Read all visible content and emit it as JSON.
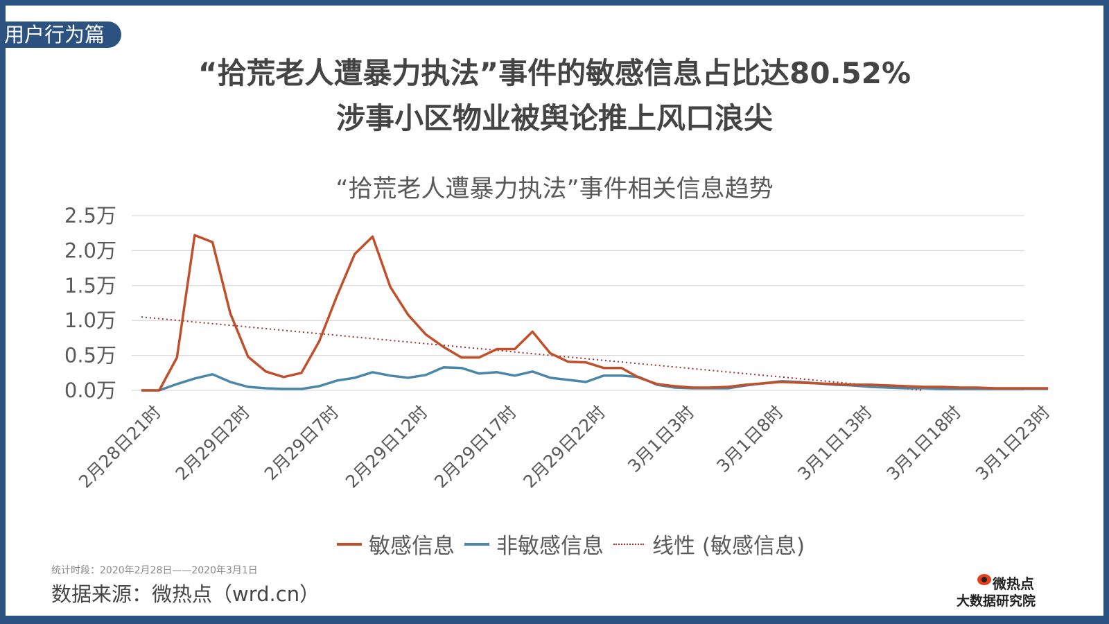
{
  "section_tag": "用户行为篇",
  "headline": {
    "line1": "“拾荒老人遭暴力执法”事件的敏感信息占比达80.52%",
    "line2": "涉事小区物业被舆论推上风口浪尖"
  },
  "footer": {
    "period": "统计时段：2020年2月28日——2020年3月1日",
    "source": "数据来源：微热点（wrd.cn）",
    "logo_line1": "微热点",
    "logo_line2": "大数据研究院"
  },
  "colors": {
    "frame": "#2c5282",
    "sensitive": "#c0502b",
    "non_sensitive": "#4a86a8",
    "trend": "#a52a2a",
    "grid": "#d9d9d9"
  },
  "chart_data": {
    "type": "line",
    "title": "“拾荒老人遭暴力执法”事件相关信息趋势",
    "xlabel": "",
    "ylabel": "",
    "ylim": [
      0,
      25000
    ],
    "y_ticks": [
      "0.0万",
      "0.5万",
      "1.0万",
      "1.5万",
      "2.0万",
      "2.5万"
    ],
    "x_tick_labels": [
      "2月28日21时",
      "2月29日2时",
      "2月29日7时",
      "2月29日12时",
      "2月29日17时",
      "2月29日22时",
      "3月1日3时",
      "3月1日8时",
      "3月1日13时",
      "3月1日18时",
      "3月1日23时"
    ],
    "grid": true,
    "legend_position": "bottom",
    "legend": [
      "敏感信息",
      "非敏感信息",
      "线性 (敏感信息)"
    ],
    "x": [
      "2月28日20时",
      "2月28日21时",
      "2月28日22时",
      "2月28日23时",
      "2月29日0时",
      "2月29日1时",
      "2月29日2时",
      "2月29日3时",
      "2月29日4时",
      "2月29日5时",
      "2月29日6时",
      "2月29日7时",
      "2月29日8时",
      "2月29日9时",
      "2月29日10时",
      "2月29日11时",
      "2月29日12时",
      "2月29日13时",
      "2月29日14时",
      "2月29日15时",
      "2月29日16时",
      "2月29日17时",
      "2月29日18时",
      "2月29日19时",
      "2月29日20时",
      "2月29日21时",
      "2月29日22时",
      "2月29日23时",
      "3月1日0时",
      "3月1日1时",
      "3月1日2时",
      "3月1日3时",
      "3月1日4时",
      "3月1日5时",
      "3月1日6时",
      "3月1日7时",
      "3月1日8时",
      "3月1日9时",
      "3月1日10时",
      "3月1日11时",
      "3月1日12时",
      "3月1日13时",
      "3月1日14时",
      "3月1日15时",
      "3月1日16时",
      "3月1日17时",
      "3月1日18时",
      "3月1日19时",
      "3月1日20时",
      "3月1日21时",
      "3月1日22时",
      "3月1日23时"
    ],
    "series": [
      {
        "name": "敏感信息",
        "values": [
          0,
          0,
          4700,
          22200,
          21200,
          11000,
          4800,
          2700,
          1900,
          2500,
          7000,
          13500,
          19500,
          22000,
          14800,
          10800,
          8000,
          6200,
          4700,
          4700,
          5900,
          5900,
          8400,
          5300,
          4100,
          4000,
          3200,
          3200,
          1800,
          900,
          600,
          400,
          400,
          500,
          800,
          1000,
          1200,
          1100,
          1000,
          900,
          800,
          800,
          700,
          600,
          500,
          500,
          400,
          400,
          300,
          300,
          300,
          300
        ]
      },
      {
        "name": "非敏感信息",
        "values": [
          0,
          0,
          900,
          1700,
          2300,
          1200,
          500,
          300,
          200,
          200,
          600,
          1400,
          1800,
          2600,
          2100,
          1800,
          2200,
          3300,
          3200,
          2400,
          2600,
          2100,
          2700,
          1800,
          1500,
          1200,
          2100,
          2100,
          1900,
          800,
          400,
          300,
          300,
          300,
          700,
          1000,
          1300,
          1200,
          1000,
          800,
          700,
          500,
          400,
          300,
          300,
          200,
          200,
          200,
          200,
          200,
          200,
          200
        ]
      },
      {
        "name": "线性 (敏感信息)",
        "values_start": 10500,
        "values_end": 0
      }
    ]
  }
}
